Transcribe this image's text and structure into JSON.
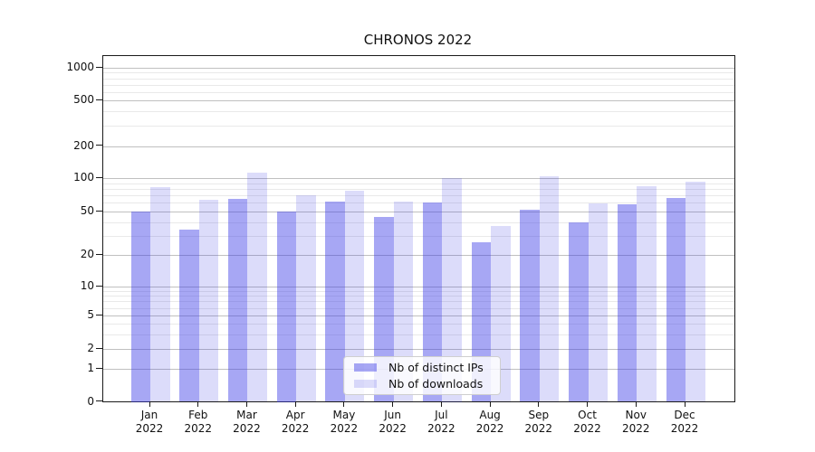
{
  "chart_data": {
    "type": "bar",
    "title": "CHRONOS 2022",
    "categories": [
      "Jan",
      "Feb",
      "Mar",
      "Apr",
      "May",
      "Jun",
      "Jul",
      "Aug",
      "Sep",
      "Oct",
      "Nov",
      "Dec"
    ],
    "year": "2022",
    "series": [
      {
        "name": "Nb of distinct IPs",
        "color": "rgba(59,59,231,0.45)",
        "values": [
          50,
          34,
          65,
          50,
          61,
          45,
          60,
          26,
          52,
          40,
          58,
          66
        ]
      },
      {
        "name": "Nb of downloads",
        "color": "rgba(49,49,226,0.17)",
        "values": [
          83,
          64,
          113,
          70,
          77,
          61,
          100,
          37,
          103,
          59,
          85,
          92
        ]
      }
    ],
    "yscale": "symlog",
    "y_major_ticks": [
      0,
      1,
      2,
      5,
      10,
      20,
      50,
      100,
      200,
      500,
      1000
    ],
    "y_minor_ticks": [
      3,
      4,
      6,
      7,
      8,
      9,
      30,
      40,
      60,
      70,
      80,
      90,
      300,
      400,
      600,
      700,
      800,
      900
    ],
    "ylim": [
      0,
      1300
    ],
    "grid": true,
    "legend_position": "lower center",
    "colors": {
      "major_grid": "#c0c0c0",
      "minor_grid": "#e9e9e9",
      "spine": "#1a1a1a"
    }
  }
}
